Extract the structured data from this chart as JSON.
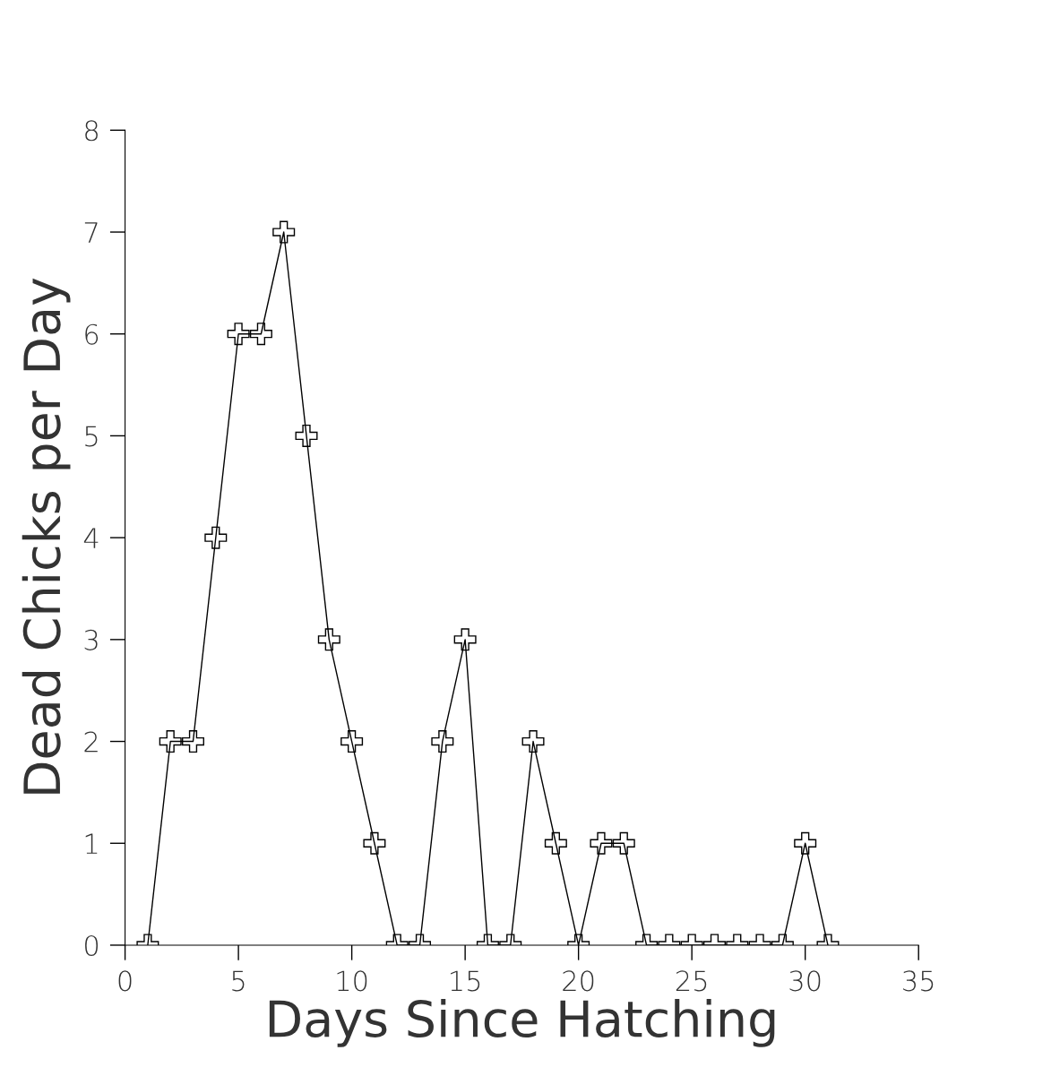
{
  "chart_data": {
    "type": "line",
    "xlabel": "Days Since Hatching",
    "ylabel": "Dead Chicks per Day",
    "x": [
      1,
      2,
      3,
      4,
      5,
      6,
      7,
      8,
      9,
      10,
      11,
      12,
      13,
      14,
      15,
      16,
      17,
      18,
      19,
      20,
      21,
      22,
      23,
      24,
      25,
      26,
      27,
      28,
      29,
      30,
      31
    ],
    "series": [
      {
        "color": "#000000",
        "values": [
          0,
          2,
          2,
          4,
          6,
          6,
          7,
          5,
          3,
          2,
          1,
          0,
          0,
          2,
          3,
          0,
          0,
          2,
          1,
          0,
          1,
          1,
          0,
          0,
          0,
          0,
          0,
          0,
          0,
          1,
          0
        ]
      }
    ],
    "xlim": [
      0,
      35
    ],
    "xticks": [
      0,
      5,
      10,
      15,
      20,
      25,
      30,
      35
    ],
    "ylim": [
      0,
      8
    ],
    "yticks": [
      0,
      1,
      2,
      3,
      4,
      5,
      6,
      7,
      8
    ],
    "marker": "cross",
    "line_style": "solid",
    "grid": false,
    "legend": false
  }
}
